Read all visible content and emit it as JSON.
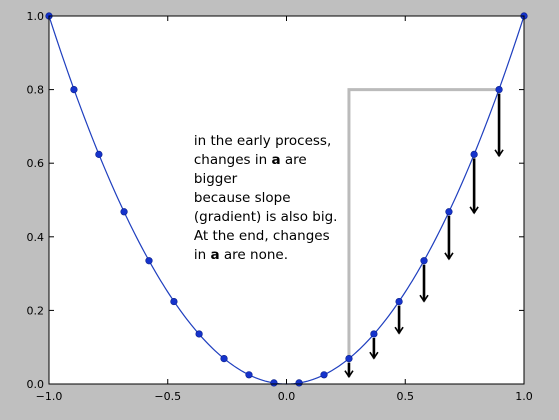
{
  "chart_data": {
    "type": "line",
    "title": "",
    "xlabel": "",
    "ylabel": "",
    "xlim": [
      -1.0,
      1.0
    ],
    "ylim": [
      0.0,
      1.0
    ],
    "grid": false,
    "x_ticks": [
      -1.0,
      -0.5,
      0.0,
      0.5,
      1.0
    ],
    "x_tick_labels": [
      "−1.0",
      "−0.5",
      "0.0",
      "0.5",
      "1.0"
    ],
    "y_ticks": [
      0.0,
      0.2,
      0.4,
      0.6,
      0.8,
      1.0
    ],
    "y_tick_labels": [
      "0.0",
      "0.2",
      "0.4",
      "0.6",
      "0.8",
      "1.0"
    ],
    "series": [
      {
        "values_function": "x^2",
        "color": "#1f3fbf",
        "points": [
          {
            "x": -1.0,
            "y": 1.0
          },
          {
            "x": -0.895,
            "y": 0.8
          },
          {
            "x": -0.79,
            "y": 0.624
          },
          {
            "x": -0.684,
            "y": 0.468
          },
          {
            "x": -0.579,
            "y": 0.335
          },
          {
            "x": -0.474,
            "y": 0.224
          },
          {
            "x": -0.368,
            "y": 0.136
          },
          {
            "x": -0.263,
            "y": 0.069
          },
          {
            "x": -0.158,
            "y": 0.025
          },
          {
            "x": -0.053,
            "y": 0.003
          },
          {
            "x": 0.053,
            "y": 0.003
          },
          {
            "x": 0.158,
            "y": 0.025
          },
          {
            "x": 0.263,
            "y": 0.069
          },
          {
            "x": 0.368,
            "y": 0.136
          },
          {
            "x": 0.474,
            "y": 0.224
          },
          {
            "x": 0.579,
            "y": 0.335
          },
          {
            "x": 0.684,
            "y": 0.468
          },
          {
            "x": 0.79,
            "y": 0.624
          },
          {
            "x": 0.895,
            "y": 0.8
          },
          {
            "x": 1.0,
            "y": 1.0
          }
        ]
      }
    ],
    "arrows": [
      {
        "x": 0.895,
        "y_from": 0.8,
        "y_to": 0.62
      },
      {
        "x": 0.79,
        "y_from": 0.624,
        "y_to": 0.465
      },
      {
        "x": 0.684,
        "y_from": 0.468,
        "y_to": 0.34
      },
      {
        "x": 0.579,
        "y_from": 0.335,
        "y_to": 0.225
      },
      {
        "x": 0.474,
        "y_from": 0.224,
        "y_to": 0.138
      },
      {
        "x": 0.368,
        "y_from": 0.136,
        "y_to": 0.07
      },
      {
        "x": 0.263,
        "y_from": 0.069,
        "y_to": 0.02
      }
    ],
    "slope_bracket": {
      "x_from": 0.263,
      "x_to": 0.895,
      "y_low": 0.069,
      "y_high": 0.8,
      "color": "#bbbbbb"
    },
    "annotation": {
      "lines": [
        [
          {
            "t": "in the early process,",
            "b": false
          }
        ],
        [
          {
            "t": "changes in ",
            "b": false
          },
          {
            "t": "a",
            "b": true
          },
          {
            "t": " are",
            "b": false
          }
        ],
        [
          {
            "t": "bigger",
            "b": false
          }
        ],
        [
          {
            "t": "because slope",
            "b": false
          }
        ],
        [
          {
            "t": "(gradient) is also big.",
            "b": false
          }
        ],
        [
          {
            "t": "At the end, changes",
            "b": false
          }
        ],
        [
          {
            "t": "in ",
            "b": false
          },
          {
            "t": "a",
            "b": true
          },
          {
            "t": " are none.",
            "b": false
          }
        ]
      ],
      "x": -0.39,
      "y": 0.65
    }
  }
}
